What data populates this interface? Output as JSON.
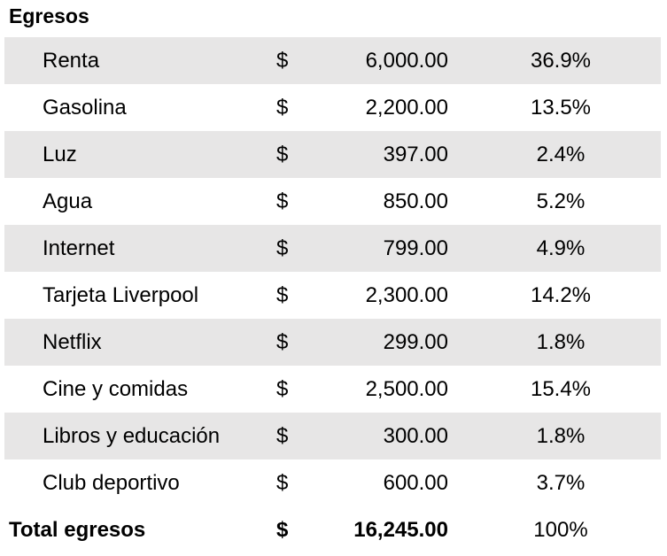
{
  "title": "Egresos",
  "rows": [
    {
      "label": "Renta",
      "currency": "$",
      "amount": "6,000.00",
      "percent": "36.9%"
    },
    {
      "label": "Gasolina",
      "currency": "$",
      "amount": "2,200.00",
      "percent": "13.5%"
    },
    {
      "label": "Luz",
      "currency": "$",
      "amount": "397.00",
      "percent": "2.4%"
    },
    {
      "label": "Agua",
      "currency": "$",
      "amount": "850.00",
      "percent": "5.2%"
    },
    {
      "label": "Internet",
      "currency": "$",
      "amount": "799.00",
      "percent": "4.9%"
    },
    {
      "label": "Tarjeta Liverpool",
      "currency": "$",
      "amount": "2,300.00",
      "percent": "14.2%"
    },
    {
      "label": "Netflix",
      "currency": "$",
      "amount": "299.00",
      "percent": "1.8%"
    },
    {
      "label": "Cine y comidas",
      "currency": "$",
      "amount": "2,500.00",
      "percent": "15.4%"
    },
    {
      "label": "Libros y educación",
      "currency": "$",
      "amount": "300.00",
      "percent": "1.8%"
    },
    {
      "label": "Club deportivo",
      "currency": "$",
      "amount": "600.00",
      "percent": "3.7%"
    }
  ],
  "total": {
    "label": "Total egresos",
    "currency": "$",
    "amount": "16,245.00",
    "percent": "100%"
  },
  "colors": {
    "shaded_row": "#e7e6e6",
    "text": "#000000"
  }
}
